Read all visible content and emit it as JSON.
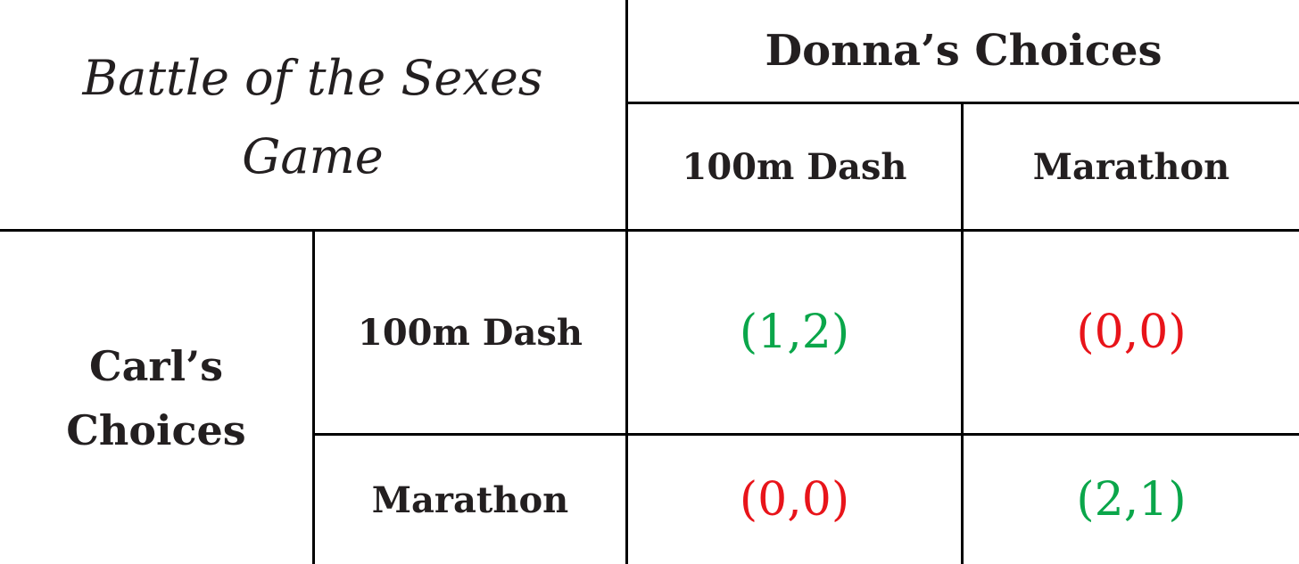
{
  "game": {
    "title_line1": "Battle of the Sexes",
    "title_line2": "Game",
    "column_player": "Donna’s Choices",
    "row_player_line1": "Carl’s",
    "row_player_line2": "Choices",
    "columns": [
      "100m Dash",
      "Marathon"
    ],
    "rows": [
      "100m Dash",
      "Marathon"
    ],
    "payoffs": [
      [
        {
          "text": "(1,2)",
          "color": "#0aa64a"
        },
        {
          "text": "(0,0)",
          "color": "#e8141a"
        }
      ],
      [
        {
          "text": "(0,0)",
          "color": "#e8141a"
        },
        {
          "text": "(2,1)",
          "color": "#0aa64a"
        }
      ]
    ]
  }
}
